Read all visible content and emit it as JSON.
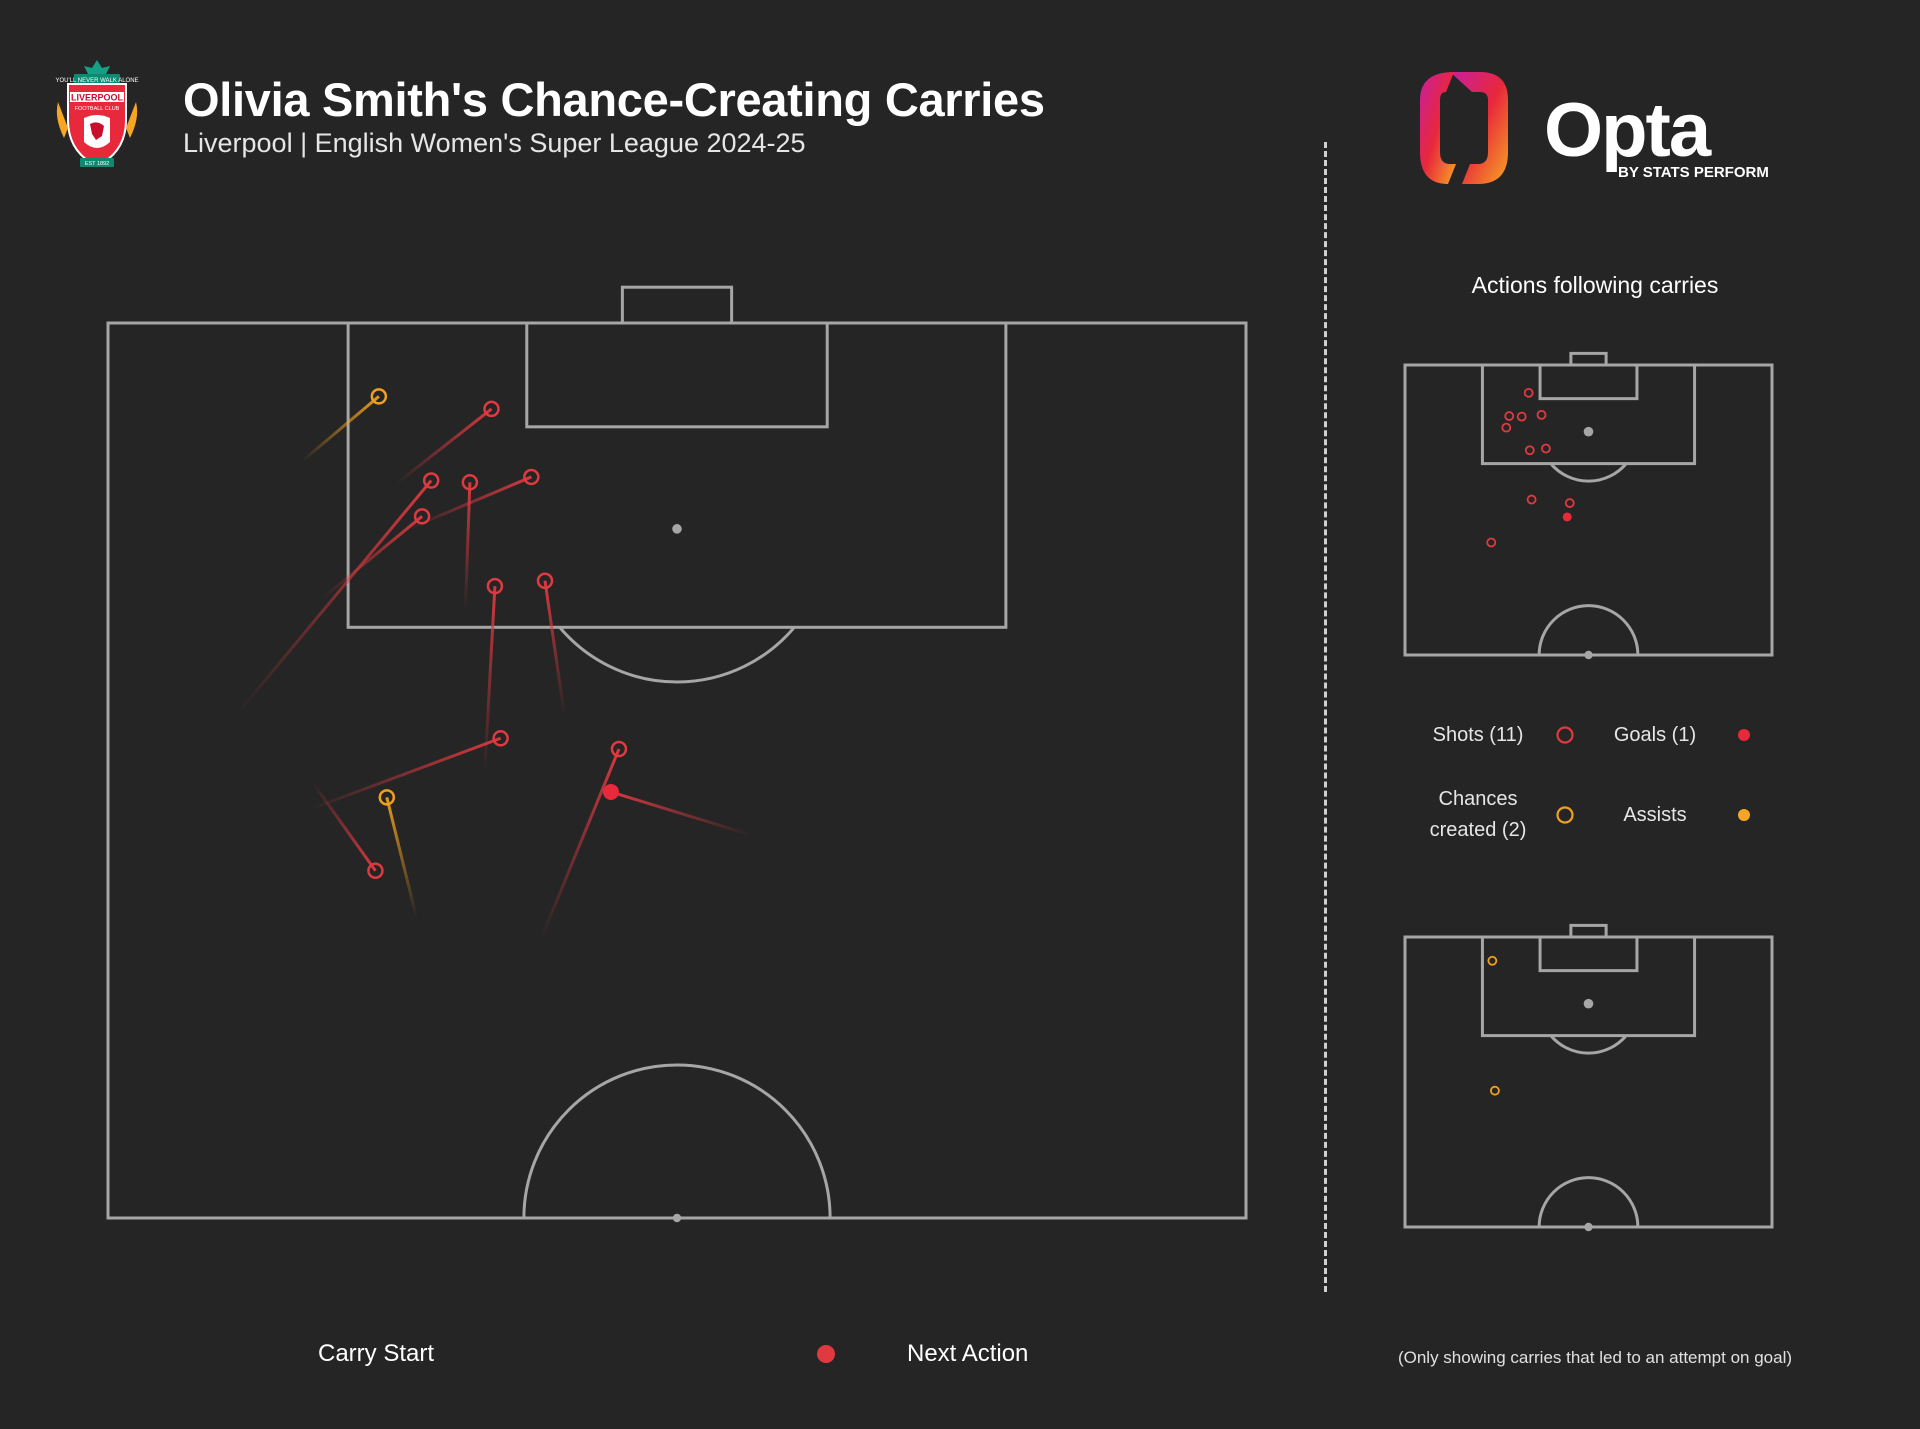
{
  "header": {
    "title": "Olivia Smith's Chance-Creating Carries",
    "subtitle": "Liverpool | English Women's Super League 2024-25",
    "crest_text": "LIVERPOOL",
    "crest_motto": "YOU'LL NEVER WALK ALONE",
    "crest_club": "FOOTBALL CLUB",
    "crest_est": "EST 1892"
  },
  "brand": {
    "logo_text": "Opta",
    "logo_sub": "BY STATS PERFORM"
  },
  "colors": {
    "background": "#252525",
    "pitch_lines": "#a6a6a6",
    "shot": "#e03a40",
    "goal": "#e8283b",
    "chance": "#f0a020",
    "assist": "#f6a623"
  },
  "right_panel": {
    "title": "Actions following carries",
    "legend": {
      "shots": "Shots (11)",
      "goals": "Goals (1)",
      "chances_line1": "Chances",
      "chances_line2": "created (2)",
      "assists": "Assists"
    },
    "footnote": "(Only showing carries that led to an attempt on goal)"
  },
  "bottom_legend": {
    "carry_start": "Carry Start",
    "next_action": "Next Action"
  },
  "chart_data": {
    "type": "scatter",
    "pitch": "opta half-pitch, x = distance up pitch (50-100), y = width (0-100)",
    "carries": [
      {
        "type": "shot",
        "start": [
          88.5,
          26.4
        ],
        "end": [
          91.4,
          37.2
        ]
      },
      {
        "type": "shot",
        "start": [
          91.0,
          25.3
        ],
        "end": [
          95.2,
          33.7
        ]
      },
      {
        "type": "shot",
        "start": [
          83.9,
          31.4
        ],
        "end": [
          91.1,
          31.8
        ]
      },
      {
        "type": "shot",
        "start": [
          78.1,
          40.1
        ],
        "end": [
          85.6,
          38.4
        ]
      },
      {
        "type": "shot",
        "start": [
          72.8,
          17.6
        ],
        "end": [
          76.8,
          34.5
        ]
      },
      {
        "type": "shot",
        "start": [
          74.9,
          33.1
        ],
        "end": [
          85.3,
          34.0
        ]
      },
      {
        "type": "shot",
        "start": [
          84.6,
          18.8
        ],
        "end": [
          89.2,
          27.6
        ]
      },
      {
        "type": "shot",
        "start": [
          78.2,
          11.4
        ],
        "end": [
          91.2,
          28.4
        ]
      },
      {
        "type": "shot",
        "start": [
          74.4,
          17.9
        ],
        "end": [
          69.4,
          23.5
        ]
      },
      {
        "type": "shot",
        "start": [
          65.5,
          38.0
        ],
        "end": [
          76.2,
          44.9
        ]
      },
      {
        "type": "goal",
        "start": [
          71.4,
          56.5
        ],
        "end": [
          73.8,
          44.2
        ]
      },
      {
        "type": "chance",
        "start": [
          66.8,
          27.1
        ],
        "end": [
          73.5,
          24.5
        ]
      },
      {
        "type": "chance",
        "start": [
          92.3,
          17.1
        ],
        "end": [
          95.9,
          23.8
        ]
      }
    ]
  }
}
